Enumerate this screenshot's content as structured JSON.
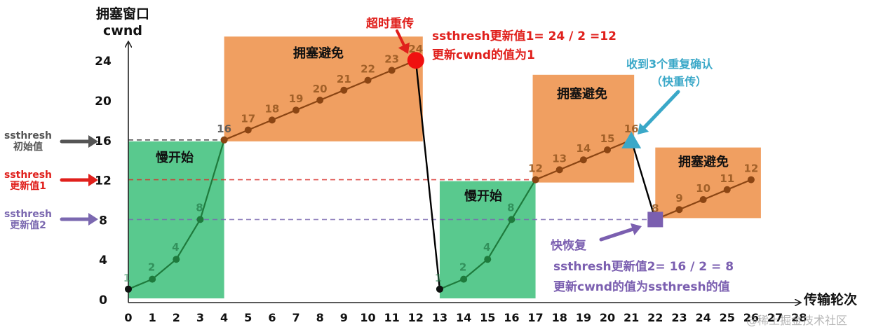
{
  "chart_data": {
    "type": "line",
    "title": "",
    "ylabel_line1": "拥塞窗口",
    "ylabel_line2": "cwnd",
    "xlabel": "传输轮次",
    "x_ticks": [
      0,
      1,
      2,
      3,
      4,
      5,
      6,
      7,
      8,
      9,
      10,
      11,
      12,
      13,
      14,
      15,
      16,
      17,
      18,
      19,
      20,
      21,
      22,
      23,
      24,
      25,
      26,
      27,
      28
    ],
    "y_ticks": [
      0,
      4,
      8,
      12,
      16,
      20,
      24
    ],
    "xlim": [
      0,
      28
    ],
    "ylim": [
      0,
      24
    ],
    "grid": false,
    "series": [
      {
        "name": "慢开始 (1)",
        "phase": "slow-start",
        "color": "#1e7a3c",
        "x": [
          0,
          1,
          2,
          3,
          4
        ],
        "values": [
          1,
          2,
          4,
          8,
          16
        ]
      },
      {
        "name": "拥塞避免 (1)",
        "phase": "congestion-avoidance",
        "color": "#8b4513",
        "x": [
          4,
          5,
          6,
          7,
          8,
          9,
          10,
          11,
          12
        ],
        "values": [
          16,
          17,
          18,
          19,
          20,
          21,
          22,
          23,
          24
        ]
      },
      {
        "name": "超时重传 drop",
        "phase": "timeout",
        "color": "#000000",
        "x": [
          12,
          13
        ],
        "values": [
          24,
          1
        ]
      },
      {
        "name": "慢开始 (2)",
        "phase": "slow-start",
        "color": "#1e7a3c",
        "x": [
          13,
          14,
          15,
          16,
          17
        ],
        "values": [
          1,
          2,
          4,
          8,
          12
        ]
      },
      {
        "name": "拥塞避免 (2)",
        "phase": "congestion-avoidance",
        "color": "#8b4513",
        "x": [
          17,
          18,
          19,
          20,
          21
        ],
        "values": [
          12,
          13,
          14,
          15,
          16
        ]
      },
      {
        "name": "快重传 drop",
        "phase": "fast-retransmit",
        "color": "#000000",
        "x": [
          21,
          22
        ],
        "values": [
          16,
          8
        ]
      },
      {
        "name": "拥塞避免 (3)",
        "phase": "congestion-avoidance",
        "color": "#8b4513",
        "x": [
          22,
          23,
          24,
          25,
          26
        ],
        "values": [
          8,
          9,
          10,
          11,
          12
        ]
      }
    ],
    "point_labels": [
      {
        "x": 0,
        "y": 1,
        "label": "1"
      },
      {
        "x": 1,
        "y": 2,
        "label": "2"
      },
      {
        "x": 2,
        "y": 4,
        "label": "4"
      },
      {
        "x": 3,
        "y": 8,
        "label": "8"
      },
      {
        "x": 4,
        "y": 16,
        "label": "16"
      },
      {
        "x": 5,
        "y": 17,
        "label": "17"
      },
      {
        "x": 6,
        "y": 18,
        "label": "18"
      },
      {
        "x": 7,
        "y": 19,
        "label": "19"
      },
      {
        "x": 8,
        "y": 20,
        "label": "20"
      },
      {
        "x": 9,
        "y": 21,
        "label": "21"
      },
      {
        "x": 10,
        "y": 22,
        "label": "22"
      },
      {
        "x": 11,
        "y": 23,
        "label": "23"
      },
      {
        "x": 12,
        "y": 24,
        "label": "24"
      },
      {
        "x": 13,
        "y": 1,
        "label": "1"
      },
      {
        "x": 14,
        "y": 2,
        "label": "2"
      },
      {
        "x": 15,
        "y": 4,
        "label": "4"
      },
      {
        "x": 16,
        "y": 8,
        "label": "8"
      },
      {
        "x": 17,
        "y": 12,
        "label": "12"
      },
      {
        "x": 18,
        "y": 13,
        "label": "13"
      },
      {
        "x": 19,
        "y": 14,
        "label": "14"
      },
      {
        "x": 20,
        "y": 15,
        "label": "15"
      },
      {
        "x": 21,
        "y": 16,
        "label": "16"
      },
      {
        "x": 22,
        "y": 8,
        "label": "8"
      },
      {
        "x": 23,
        "y": 9,
        "label": "9"
      },
      {
        "x": 24,
        "y": 10,
        "label": "10"
      },
      {
        "x": 25,
        "y": 11,
        "label": "11"
      },
      {
        "x": 26,
        "y": 12,
        "label": "12"
      }
    ],
    "threshold_lines": [
      {
        "name": "ssthresh 初始值",
        "value": 16,
        "color": "#333333",
        "x_from": 0,
        "x_to": 4
      },
      {
        "name": "ssthresh 更新值1",
        "value": 12,
        "color": "#d9302c",
        "x_from": 0,
        "x_to": 17
      },
      {
        "name": "ssthresh 更新值2",
        "value": 8,
        "color": "#7b68b0",
        "x_from": 0,
        "x_to": 22
      }
    ],
    "regions": [
      {
        "label": "慢开始",
        "type": "slow-start",
        "x_from": 0,
        "x_to": 4,
        "color": "#3cc07a"
      },
      {
        "label": "拥塞避免",
        "type": "congestion-avoidance",
        "x_from": 4,
        "x_to": 12,
        "color": "#ee9550"
      },
      {
        "label": "慢开始",
        "type": "slow-start",
        "x_from": 13,
        "x_to": 17,
        "color": "#3cc07a"
      },
      {
        "label": "拥塞避免",
        "type": "congestion-avoidance",
        "x_from": 17,
        "x_to": 21,
        "color": "#ee9550"
      },
      {
        "label": "拥塞避免",
        "type": "congestion-avoidance",
        "x_from": 22,
        "x_to": 26,
        "color": "#ee9550"
      }
    ],
    "annotations": [
      {
        "text": "超时重传",
        "at": {
          "x": 12,
          "y": 24
        },
        "color": "#e0201c"
      },
      {
        "text": "ssthresh更新值1= 24 / 2 =12",
        "color": "#e0201c"
      },
      {
        "text": "更新cwnd的值为1",
        "color": "#e0201c"
      },
      {
        "text": "收到3个重复确认",
        "at": {
          "x": 21,
          "y": 16
        },
        "color": "#3aa8c8"
      },
      {
        "text": "（快重传）",
        "color": "#3aa8c8"
      },
      {
        "text": "快恢复",
        "at": {
          "x": 22,
          "y": 8
        },
        "color": "#7b5fb0"
      },
      {
        "text": "ssthresh更新值2= 16 / 2 = 8",
        "color": "#7b5fb0"
      },
      {
        "text": "更新cwnd的值为ssthresh的值",
        "color": "#7b5fb0"
      }
    ]
  },
  "axis": {
    "y_title_1": "拥塞窗口",
    "y_title_2": "cwnd",
    "x_title": "传输轮次"
  },
  "side_labels": {
    "init_1": "ssthresh",
    "init_2": "初始值",
    "upd1_1": "ssthresh",
    "upd1_2": "更新值1",
    "upd2_1": "ssthresh",
    "upd2_2": "更新值2"
  },
  "regions": {
    "ss1": "慢开始",
    "ca1": "拥塞避免",
    "ss2": "慢开始",
    "ca2": "拥塞避免",
    "ca3": "拥塞避免"
  },
  "annotations": {
    "timeout": "超时重传",
    "upd1_line1": "ssthresh更新值1= 24 / 2 =12",
    "upd1_line2": "更新cwnd的值为1",
    "dupack_line1": "收到3个重复确认",
    "dupack_line2": "（快重传）",
    "fast_recovery": "快恢复",
    "upd2_line1": "ssthresh更新值2= 16 / 2 = 8",
    "upd2_line2": "更新cwnd的值为ssthresh的值"
  },
  "watermark": "@稀土掘金技术社区",
  "colors": {
    "slow_start": "#3cc07a",
    "congestion_avoidance": "#ee9550",
    "ss_line": "#1e7a3c",
    "ca_line": "#8b4513",
    "timeout_red": "#e0201c",
    "dupack_blue": "#3aa8c8",
    "recovery_purple": "#7b5fb0",
    "init_gray": "#555555"
  }
}
